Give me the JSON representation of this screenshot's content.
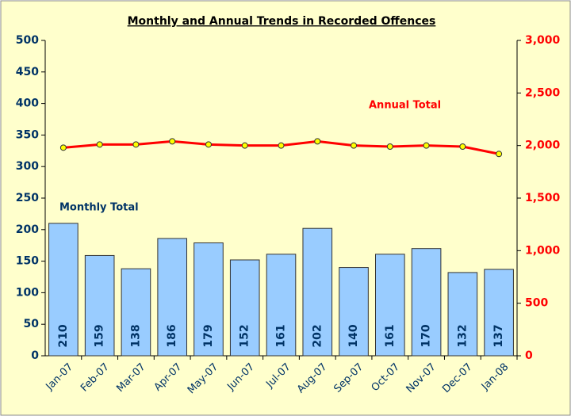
{
  "chart_data": {
    "type": "bar",
    "title": "Monthly and Annual Trends in Recorded Offences",
    "categories": [
      "Jan-07",
      "Feb-07",
      "Mar-07",
      "Apr-07",
      "May-07",
      "Jun-07",
      "Jul-07",
      "Aug-07",
      "Sep-07",
      "Oct-07",
      "Nov-07",
      "Dec-07",
      "Jan-08"
    ],
    "series": [
      {
        "name": "Monthly Total",
        "type": "bar",
        "color": "#99ccff",
        "values": [
          210,
          159,
          138,
          186,
          179,
          152,
          161,
          202,
          140,
          161,
          170,
          132,
          137
        ]
      },
      {
        "name": "Annual Total",
        "type": "line",
        "axis": "y2",
        "color": "#ff0000",
        "values": [
          1980,
          2010,
          2010,
          2040,
          2010,
          2000,
          2000,
          2040,
          2000,
          1990,
          2000,
          1990,
          1920
        ]
      }
    ],
    "ylim": [
      0,
      500
    ],
    "yticks": [
      0,
      50,
      100,
      150,
      200,
      250,
      300,
      350,
      400,
      450,
      500
    ],
    "y2lim": [
      0,
      3000
    ],
    "y2ticks": [
      0,
      500,
      {
        "value": 1000,
        "label": "1,000"
      },
      {
        "value": 1500,
        "label": "1,500"
      },
      {
        "value": 2000,
        "label": "2,000"
      },
      {
        "value": 2500,
        "label": "2,500"
      },
      {
        "value": 3000,
        "label": "3,000"
      }
    ],
    "grid": false
  }
}
